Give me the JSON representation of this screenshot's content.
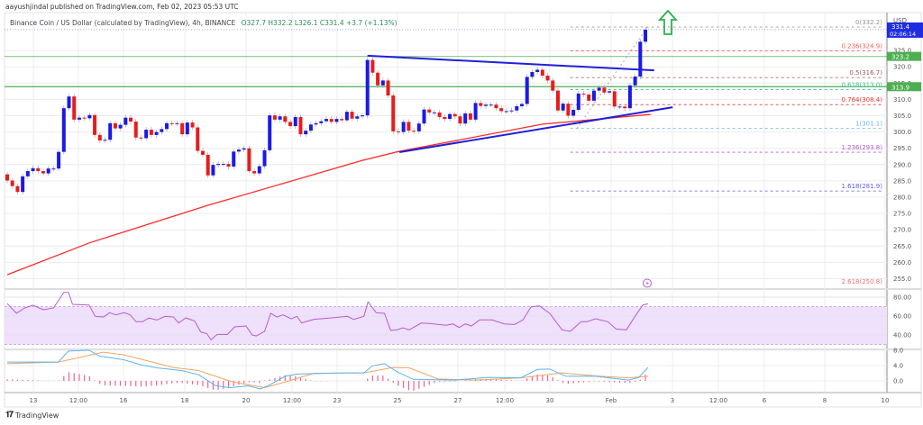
{
  "header": {
    "publisher": "aayushjindal published on TradingView.com, Feb 02, 2023 05:53 UTC",
    "symbol": "Binance Coin / US Dollar (calculated by TradingView), 4h, BINANCE",
    "ohlc": "O327.7  H332.2  L326.1  C331.4  +3.7 (+1.13%)"
  },
  "footer": {
    "brand": "TradingView",
    "logo_icon": "tradingview-logo-icon"
  },
  "colors": {
    "up": "#1a1ae6",
    "down": "#e81c1c",
    "ma": "#ff2a2a",
    "trendline": "#2020d8",
    "support": "#4caf50",
    "rsi": "#b25fd0",
    "rsi_band": "#efe0fb",
    "macd": "#5ab4f0",
    "signal": "#f4a460",
    "histogram": "#f06292",
    "arrow": "#2bb24c"
  },
  "chart_data": [
    {
      "type": "candlestick",
      "title": "",
      "yaxis_unit": "USD",
      "ylim": [
        252,
        334
      ],
      "y_ticks": [
        "325.0",
        "320.0",
        "315.0",
        "310.0",
        "305.0",
        "300.0",
        "295.0",
        "290.0",
        "285.0",
        "280.0",
        "275.0",
        "270.0",
        "265.0",
        "260.0",
        "255.0"
      ],
      "x_ticks": [
        "13",
        "12:00",
        "16",
        "18",
        "20",
        "12:00",
        "23",
        "25",
        "27",
        "12:00",
        "30",
        "Feb",
        "3",
        "12:00",
        "6",
        "8",
        "10"
      ],
      "grid": true,
      "closes": [
        285.1,
        283.4,
        281.6,
        286.4,
        288.0,
        288.9,
        288.0,
        287.3,
        288.8,
        288.8,
        293.9,
        307.3,
        310.9,
        303.8,
        304.4,
        304.2,
        305.2,
        299.1,
        297.4,
        297.6,
        302.7,
        301.1,
        302.2,
        304.4,
        303.2,
        298.3,
        298.1,
        300.7,
        299.1,
        300.0,
        300.9,
        302.7,
        302.6,
        302.7,
        299.3,
        302.9,
        301.4,
        294.2,
        293.0,
        286.7,
        289.9,
        290.2,
        290.2,
        289.4,
        294.0,
        294.6,
        295.0,
        288.0,
        287.3,
        289.5,
        294.4,
        305.1,
        303.8,
        304.8,
        303.1,
        301.8,
        304.6,
        299.3,
        300.4,
        302.3,
        302.7,
        303.3,
        304.0,
        303.1,
        304.0,
        303.6,
        306.2,
        304.1,
        304.8,
        305.1,
        322.1,
        318.2,
        314.3,
        315.8,
        311.2,
        300.2,
        300.0,
        303.1,
        300.4,
        300.2,
        302.6,
        306.9,
        306.0,
        306.0,
        304.6,
        304.0,
        305.5,
        304.8,
        302.6,
        305.7,
        303.8,
        308.9,
        308.0,
        308.4,
        308.4,
        307.3,
        306.4,
        306.4,
        306.6,
        307.9,
        308.6,
        316.9,
        318.4,
        319.1,
        317.3,
        315.8,
        312.7,
        306.6,
        308.7,
        305.0,
        306.8,
        311.8,
        311.5,
        309.6,
        312.7,
        313.6,
        312.1,
        312.5,
        307.8,
        307.8,
        307.3,
        314.3,
        317.0,
        327.7,
        331.4
      ],
      "first_open": 287.0,
      "moving_average": [
        [
          0,
          256.2
        ],
        [
          16,
          266
        ],
        [
          39,
          277.5
        ],
        [
          69,
          291.3
        ],
        [
          76,
          294
        ],
        [
          104,
          302.4
        ],
        [
          125,
          305.4
        ]
      ],
      "trendlines": [
        {
          "name": "resistance",
          "points": [
            [
              70,
              323.4
            ],
            [
              125.7,
              318.9
            ]
          ]
        },
        {
          "name": "support",
          "points": [
            [
              76.2,
              293.8
            ],
            [
              129.3,
              307.6
            ]
          ]
        }
      ],
      "horizontal_levels": [
        {
          "value": 323.2,
          "label": "323.2"
        },
        {
          "value": 313.9,
          "label": "313.9"
        }
      ],
      "last_price": {
        "value": 331.4,
        "label": "331.4",
        "countdown": "02:06:14"
      },
      "fibonacci": [
        {
          "label": "0(332.2)",
          "value": 332.2,
          "color": "#909090"
        },
        {
          "label": "0.236(324.9)",
          "value": 324.9,
          "color": "#f0605a"
        },
        {
          "label": "0.5(316.7)",
          "value": 316.7,
          "color": "#9a5a5a"
        },
        {
          "label": "0.618(313.0)",
          "value": 313.0,
          "color": "#3fc19a"
        },
        {
          "label": "0.764(308.4)",
          "value": 308.4,
          "color": "#e53935"
        },
        {
          "label": "1(301.1)",
          "value": 301.1,
          "color": "#64b5f6"
        },
        {
          "label": "1.236(293.8)",
          "value": 293.8,
          "color": "#b05cc8"
        },
        {
          "label": "1.618(281.9)",
          "value": 281.9,
          "color": "#5c5cdc"
        },
        {
          "label": "2.618(250.8)",
          "value": 250.8,
          "color": "#e57373"
        }
      ],
      "fib_trend": [
        [
          110.7,
          301.1
        ],
        [
          124.4,
          332.2
        ]
      ],
      "annotation": "up-arrow-icon"
    },
    {
      "type": "line",
      "indicator": "RSI",
      "y_ticks": [
        "80.00",
        "60.00",
        "40.00"
      ],
      "band": [
        30,
        70
      ],
      "values": [
        [
          0,
          73.3
        ],
        [
          1.8,
          62.9
        ],
        [
          3.4,
          68.6
        ],
        [
          5,
          71.4
        ],
        [
          7,
          66.7
        ],
        [
          9,
          68.6
        ],
        [
          11,
          85
        ],
        [
          11.9,
          85
        ],
        [
          12.7,
          72.4
        ],
        [
          15.9,
          71.7
        ],
        [
          17.1,
          59.7
        ],
        [
          18.7,
          59
        ],
        [
          19.9,
          63.5
        ],
        [
          21.1,
          61.3
        ],
        [
          22.7,
          63.5
        ],
        [
          23.9,
          61.3
        ],
        [
          25,
          54
        ],
        [
          26.3,
          54
        ],
        [
          27.5,
          57.9
        ],
        [
          29.1,
          55.9
        ],
        [
          30.7,
          59.7
        ],
        [
          32.3,
          59
        ],
        [
          33.3,
          52.7
        ],
        [
          34.7,
          58
        ],
        [
          36.4,
          54.9
        ],
        [
          37.6,
          43.2
        ],
        [
          38.8,
          41.3
        ],
        [
          39.6,
          34.9
        ],
        [
          40.8,
          40.6
        ],
        [
          42.8,
          40.6
        ],
        [
          44.2,
          48.6
        ],
        [
          46.4,
          49.5
        ],
        [
          47.6,
          40
        ],
        [
          48.4,
          39
        ],
        [
          50,
          43.8
        ],
        [
          51.2,
          62.9
        ],
        [
          52.4,
          59
        ],
        [
          53.6,
          61.3
        ],
        [
          55.2,
          57.1
        ],
        [
          56.3,
          59.7
        ],
        [
          57.2,
          52.7
        ],
        [
          59.6,
          56.5
        ],
        [
          62.9,
          58
        ],
        [
          66.1,
          59.7
        ],
        [
          67.3,
          56.5
        ],
        [
          69.3,
          59.7
        ],
        [
          70.1,
          74.9
        ],
        [
          71.7,
          63.5
        ],
        [
          73.3,
          62.9
        ],
        [
          74.5,
          44.8
        ],
        [
          75.7,
          45.4
        ],
        [
          76.9,
          47.6
        ],
        [
          78.1,
          45.4
        ],
        [
          80.5,
          52.7
        ],
        [
          82.9,
          51.7
        ],
        [
          85.3,
          50.2
        ],
        [
          86.6,
          51.7
        ],
        [
          87.8,
          47.9
        ],
        [
          89,
          51.7
        ],
        [
          90.2,
          49.5
        ],
        [
          91.8,
          55.9
        ],
        [
          94.2,
          55.9
        ],
        [
          96.6,
          51.7
        ],
        [
          98.6,
          51.1
        ],
        [
          100.2,
          55.9
        ],
        [
          101.8,
          69.8
        ],
        [
          103.4,
          70.8
        ],
        [
          105.4,
          62.9
        ],
        [
          107.8,
          45.4
        ],
        [
          109.4,
          43.8
        ],
        [
          111.5,
          54
        ],
        [
          112.7,
          54
        ],
        [
          114.3,
          57.1
        ],
        [
          116.7,
          54
        ],
        [
          118.3,
          46.3
        ],
        [
          120.3,
          45.4
        ],
        [
          121.9,
          59
        ],
        [
          123.5,
          71.7
        ],
        [
          124.5,
          73
        ]
      ]
    },
    {
      "type": "line",
      "indicator": "MACD",
      "y_ticks": [
        "8.0",
        "4.0",
        "0.0"
      ],
      "macd": [
        [
          0,
          4.9
        ],
        [
          5,
          4.9
        ],
        [
          9.9,
          4.9
        ],
        [
          11.9,
          7.8
        ],
        [
          15.9,
          8
        ],
        [
          17.9,
          6.5
        ],
        [
          22.7,
          5.5
        ],
        [
          25.9,
          4.2
        ],
        [
          29.1,
          3.4
        ],
        [
          33.9,
          2.7
        ],
        [
          37.2,
          1.6
        ],
        [
          40.4,
          -1.2
        ],
        [
          43.2,
          -1.8
        ],
        [
          46.8,
          -1.3
        ],
        [
          49.2,
          -2.1
        ],
        [
          50.8,
          -1.2
        ],
        [
          54,
          1.2
        ],
        [
          56.4,
          1.8
        ],
        [
          66.1,
          2.1
        ],
        [
          69.3,
          2.1
        ],
        [
          70.9,
          3.9
        ],
        [
          73.3,
          4.5
        ],
        [
          75.7,
          2.4
        ],
        [
          78.9,
          0.4
        ],
        [
          86.9,
          0.2
        ],
        [
          93.4,
          0.9
        ],
        [
          99.8,
          0.8
        ],
        [
          103,
          3
        ],
        [
          105.4,
          3.1
        ],
        [
          108.6,
          1.2
        ],
        [
          114.3,
          1.2
        ],
        [
          120.7,
          0.2
        ],
        [
          122.7,
          0.9
        ],
        [
          124.5,
          3.5
        ]
      ],
      "signal": [
        [
          0,
          4.5
        ],
        [
          9.9,
          4.9
        ],
        [
          18.7,
          7.5
        ],
        [
          22.7,
          6.8
        ],
        [
          32.3,
          3.5
        ],
        [
          37.2,
          2.7
        ],
        [
          43.6,
          -0.2
        ],
        [
          50,
          -1.8
        ],
        [
          54.8,
          0
        ],
        [
          59.6,
          2
        ],
        [
          69.3,
          2.1
        ],
        [
          74.9,
          3.5
        ],
        [
          78.1,
          3.4
        ],
        [
          83.7,
          0.5
        ],
        [
          91,
          0.2
        ],
        [
          99.8,
          0.8
        ],
        [
          107.8,
          2.1
        ],
        [
          114.3,
          1.3
        ],
        [
          120.7,
          0.8
        ],
        [
          124.5,
          1.2
        ]
      ]
    }
  ]
}
